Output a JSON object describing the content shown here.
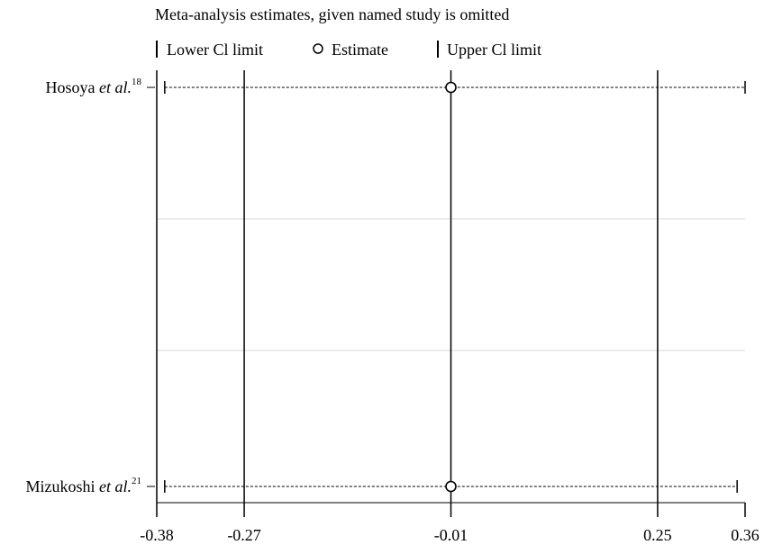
{
  "chart_data": {
    "type": "scatter",
    "title": "Meta-analysis estimates, given named study is omitted",
    "legend": {
      "placement": "top",
      "entries": [
        {
          "key": "lower",
          "marker": "bar",
          "label": "Lower Cl limit"
        },
        {
          "key": "estimate",
          "marker": "circle",
          "label": "Estimate"
        },
        {
          "key": "upper",
          "marker": "bar",
          "label": "Upper Cl limit"
        }
      ]
    },
    "studies": [
      {
        "name": "Hosoya",
        "etal": "et al.",
        "ref": "18",
        "lower": -0.37,
        "estimate": -0.01,
        "upper": 0.36
      },
      {
        "name": "Mizukoshi",
        "etal": "et al.",
        "ref": "21",
        "lower": -0.37,
        "estimate": -0.01,
        "upper": 0.35
      }
    ],
    "xlim": [
      -0.38,
      0.36
    ],
    "x_ticks": [
      {
        "value": -0.38,
        "label": "-0.38"
      },
      {
        "value": -0.27,
        "label": "-0.27"
      },
      {
        "value": -0.01,
        "label": "-0.01"
      },
      {
        "value": 0.25,
        "label": "0.25"
      },
      {
        "value": 0.36,
        "label": "0.36"
      }
    ],
    "reference_lines": [
      -0.38,
      -0.27,
      -0.01,
      0.25
    ],
    "xlabel": "",
    "ylabel": "",
    "grid": true,
    "colors": {
      "axis": "#000000",
      "grid": "#e6e6e6",
      "marker": "#000000"
    }
  }
}
